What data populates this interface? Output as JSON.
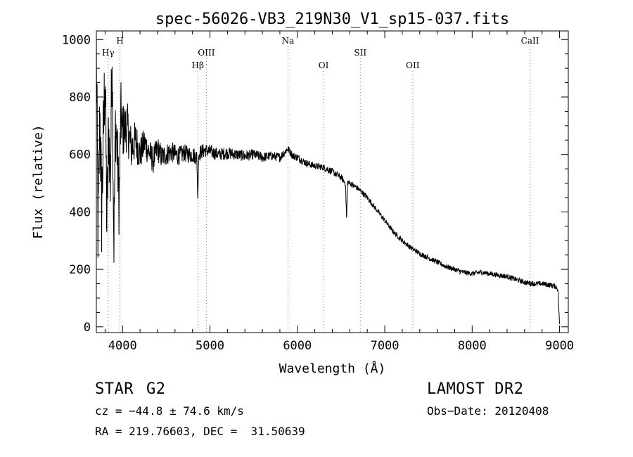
{
  "chart_data": {
    "type": "line",
    "title": "spec-56026-VB3_219N30_V1_sp15-037.fits",
    "xlabel": "Wavelength (Å)",
    "ylabel": "Flux (relative)",
    "xlim": [
      3700,
      9100
    ],
    "ylim": [
      -20,
      1030
    ],
    "xticks": [
      4000,
      5000,
      6000,
      7000,
      8000,
      9000
    ],
    "yticks": [
      0,
      200,
      400,
      600,
      800,
      1000
    ],
    "grid": false,
    "series": [
      {
        "x": [
          3700,
          3720,
          3740,
          3760,
          3780,
          3800,
          3820,
          3840,
          3860,
          3880,
          3900,
          3920,
          3940,
          3960,
          3980,
          4000,
          4050,
          4100,
          4150,
          4200,
          4250,
          4300,
          4350,
          4400,
          4450,
          4500,
          4550,
          4600,
          4650,
          4700,
          4750,
          4800,
          4850,
          4861,
          4870,
          4900,
          4950,
          5000,
          5100,
          5200,
          5300,
          5400,
          5500,
          5600,
          5700,
          5800,
          5890,
          5950,
          6000,
          6100,
          6200,
          6300,
          6400,
          6500,
          6550,
          6563,
          6575,
          6600,
          6700,
          6800,
          6900,
          7000,
          7100,
          7200,
          7300,
          7400,
          7500,
          7600,
          7700,
          7800,
          7900,
          8000,
          8100,
          8200,
          8300,
          8400,
          8500,
          8600,
          8700,
          8800,
          8900,
          8960,
          8980,
          9000
        ],
        "y": [
          950,
          300,
          750,
          400,
          650,
          900,
          350,
          700,
          500,
          980,
          280,
          720,
          600,
          420,
          750,
          680,
          700,
          620,
          650,
          600,
          640,
          610,
          580,
          620,
          590,
          600,
          610,
          600,
          595,
          605,
          600,
          600,
          590,
          440,
          600,
          610,
          615,
          610,
          600,
          605,
          600,
          595,
          600,
          590,
          595,
          590,
          620,
          595,
          590,
          570,
          560,
          555,
          540,
          520,
          500,
          380,
          505,
          500,
          480,
          450,
          410,
          370,
          330,
          300,
          275,
          255,
          240,
          225,
          210,
          200,
          190,
          185,
          190,
          185,
          180,
          175,
          165,
          155,
          150,
          150,
          145,
          140,
          130,
          10
        ],
        "noise": [
          190,
          190,
          180,
          180,
          170,
          170,
          160,
          160,
          150,
          150,
          140,
          140,
          130,
          120,
          110,
          100,
          90,
          80,
          70,
          60,
          55,
          50,
          48,
          45,
          42,
          40,
          38,
          36,
          34,
          32,
          30,
          30,
          28,
          10,
          28,
          26,
          25,
          24,
          22,
          22,
          20,
          20,
          18,
          18,
          16,
          16,
          14,
          14,
          14,
          13,
          12,
          12,
          12,
          11,
          11,
          5,
          11,
          10,
          10,
          10,
          9,
          9,
          9,
          9,
          9,
          9,
          9,
          9,
          9,
          9,
          9,
          9,
          9,
          9,
          9,
          9,
          9,
          9,
          9,
          9,
          9,
          9,
          9,
          0
        ]
      }
    ],
    "lines": [
      {
        "label": "Hγ",
        "x": 3835,
        "row": 2
      },
      {
        "label": "H",
        "x": 3970,
        "row": 1
      },
      {
        "label": "Hβ",
        "x": 4861,
        "row": 3
      },
      {
        "label": "OIII",
        "x": 4959,
        "row": 2
      },
      {
        "label": "Na",
        "x": 5893,
        "row": 1
      },
      {
        "label": "OI",
        "x": 6300,
        "row": 3
      },
      {
        "label": "SII",
        "x": 6720,
        "row": 2
      },
      {
        "label": "OII",
        "x": 7320,
        "row": 3
      },
      {
        "label": "CaII",
        "x": 8662,
        "row": 1
      }
    ],
    "colors": {
      "spectrum": "#000000",
      "marker": "#e06060",
      "axis": "#000000"
    }
  },
  "info": {
    "object_type": "STAR",
    "subclass": "G2",
    "survey": "LAMOST DR2",
    "cz": "cz = −44.8 ± 74.6 km/s",
    "obs_date": "Obs−Date: 20120408",
    "coords": "RA = 219.76603, DEC =  31.50639"
  }
}
